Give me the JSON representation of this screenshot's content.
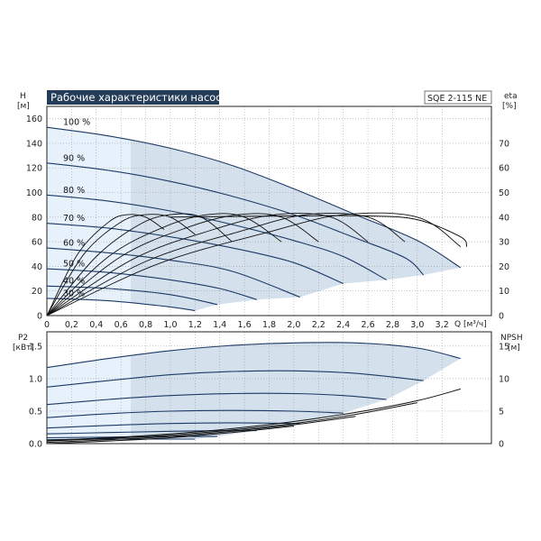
{
  "chart_data": [
    {
      "type": "line",
      "title": "Рабочие характеристики насоса",
      "model": "SQE 2-115 NE",
      "x_axis": {
        "label": "Q [м³/ч]",
        "range": [
          0,
          3.6
        ],
        "ticks": [
          "0",
          "0,2",
          "0,4",
          "0,6",
          "0,8",
          "1,0",
          "1,2",
          "1,4",
          "1,6",
          "1,8",
          "2,0",
          "2,2",
          "2,4",
          "2,6",
          "2,8",
          "3,0",
          "3,2"
        ]
      },
      "y_axis": {
        "label_top": "H",
        "label_unit": "[м]",
        "range": [
          0,
          170
        ],
        "ticks": [
          "0",
          "20",
          "40",
          "60",
          "80",
          "100",
          "120",
          "140",
          "160"
        ]
      },
      "y2_axis": {
        "label_top": "eta",
        "label_unit": "[%]",
        "range": [
          0,
          85
        ],
        "ticks": [
          "0",
          "10",
          "20",
          "30",
          "40",
          "50",
          "60",
          "70"
        ]
      },
      "colors": {
        "curve": "#1c3a66",
        "region": "#d4e0ec",
        "region_light": "#e6f1fb",
        "eta": "#111111",
        "title_bg": "#253d58"
      },
      "head_curves": [
        {
          "label": "100 %",
          "points": [
            [
              0,
              153
            ],
            [
              0.5,
              146
            ],
            [
              1.0,
              136
            ],
            [
              1.5,
              122
            ],
            [
              2.0,
              103
            ],
            [
              2.5,
              82
            ],
            [
              3.0,
              61
            ],
            [
              3.35,
              39
            ]
          ]
        },
        {
          "label": "90 %",
          "points": [
            [
              0,
              124
            ],
            [
              0.5,
              118
            ],
            [
              1.0,
              109
            ],
            [
              1.5,
              97
            ],
            [
              2.0,
              82
            ],
            [
              2.5,
              63
            ],
            [
              2.9,
              47
            ],
            [
              3.05,
              33
            ]
          ]
        },
        {
          "label": "80 %",
          "points": [
            [
              0,
              98
            ],
            [
              0.5,
              93
            ],
            [
              1.0,
              85
            ],
            [
              1.5,
              74
            ],
            [
              2.0,
              61
            ],
            [
              2.4,
              48
            ],
            [
              2.75,
              29
            ]
          ]
        },
        {
          "label": "70 %",
          "points": [
            [
              0,
              75
            ],
            [
              0.5,
              71
            ],
            [
              1.0,
              64
            ],
            [
              1.5,
              55
            ],
            [
              2.0,
              43
            ],
            [
              2.4,
              26
            ]
          ]
        },
        {
          "label": "60 %",
          "points": [
            [
              0,
              55
            ],
            [
              0.5,
              51
            ],
            [
              1.0,
              45
            ],
            [
              1.5,
              36
            ],
            [
              2.05,
              15
            ]
          ]
        },
        {
          "label": "50 %",
          "points": [
            [
              0,
              38
            ],
            [
              0.5,
              35
            ],
            [
              1.0,
              29
            ],
            [
              1.4,
              22
            ],
            [
              1.7,
              13
            ]
          ]
        },
        {
          "label": "40 %",
          "points": [
            [
              0,
              24
            ],
            [
              0.5,
              22
            ],
            [
              1.0,
              17
            ],
            [
              1.38,
              9
            ]
          ]
        },
        {
          "label": "30 %",
          "points": [
            [
              0,
              14
            ],
            [
              0.5,
              12
            ],
            [
              1.0,
              7
            ],
            [
              1.2,
              4
            ]
          ]
        }
      ],
      "eta_curves": [
        {
          "points": [
            [
              0.0,
              0
            ],
            [
              0.25,
              25
            ],
            [
              0.5,
              38
            ],
            [
              0.65,
              41
            ],
            [
              0.8,
              40
            ],
            [
              0.95,
              35
            ]
          ]
        },
        {
          "points": [
            [
              0.0,
              0
            ],
            [
              0.3,
              25
            ],
            [
              0.6,
              38
            ],
            [
              0.8,
              41
            ],
            [
              1.0,
              40
            ],
            [
              1.2,
              33
            ]
          ]
        },
        {
          "points": [
            [
              0.0,
              0
            ],
            [
              0.4,
              24
            ],
            [
              0.75,
              37
            ],
            [
              1.0,
              41
            ],
            [
              1.25,
              40
            ],
            [
              1.5,
              30
            ]
          ]
        },
        {
          "points": [
            [
              0.0,
              0
            ],
            [
              0.5,
              24
            ],
            [
              0.95,
              36
            ],
            [
              1.3,
              41
            ],
            [
              1.6,
              40
            ],
            [
              1.9,
              30
            ]
          ]
        },
        {
          "points": [
            [
              0.0,
              0
            ],
            [
              0.6,
              24
            ],
            [
              1.15,
              36
            ],
            [
              1.55,
              41
            ],
            [
              1.9,
              40
            ],
            [
              2.2,
              30
            ]
          ]
        },
        {
          "points": [
            [
              0.0,
              0
            ],
            [
              0.7,
              23
            ],
            [
              1.35,
              35
            ],
            [
              1.85,
              41
            ],
            [
              2.3,
              40
            ],
            [
              2.6,
              30
            ]
          ]
        },
        {
          "points": [
            [
              0.0,
              0
            ],
            [
              0.8,
              22
            ],
            [
              1.55,
              34
            ],
            [
              2.1,
              41
            ],
            [
              2.6,
              40
            ],
            [
              2.9,
              30
            ]
          ]
        },
        {
          "points": [
            [
              0.0,
              0
            ],
            [
              0.9,
              21
            ],
            [
              1.8,
              34
            ],
            [
              2.4,
              41
            ],
            [
              3.0,
              40
            ],
            [
              3.35,
              28
            ]
          ]
        }
      ]
    },
    {
      "type": "line",
      "x_axis": {
        "range": [
          0,
          3.6
        ]
      },
      "y_axis": {
        "label_top": "P2",
        "label_unit": "[кВт]",
        "range": [
          0,
          1.72
        ],
        "ticks": [
          "0.0",
          "0.5",
          "1.0",
          "1.5"
        ]
      },
      "y2_axis": {
        "label_top": "NPSH",
        "label_unit": "[м]",
        "range": [
          0,
          17.2
        ],
        "ticks": [
          "0",
          "5",
          "10",
          "15"
        ]
      },
      "power_curves": [
        {
          "label": "100 %",
          "points": [
            [
              0,
              1.17
            ],
            [
              0.5,
              1.31
            ],
            [
              1.0,
              1.43
            ],
            [
              1.5,
              1.51
            ],
            [
              2.0,
              1.55
            ],
            [
              2.5,
              1.55
            ],
            [
              3.0,
              1.47
            ],
            [
              3.35,
              1.31
            ]
          ]
        },
        {
          "label": "90 %",
          "points": [
            [
              0,
              0.87
            ],
            [
              0.5,
              0.97
            ],
            [
              1.0,
              1.06
            ],
            [
              1.5,
              1.11
            ],
            [
              2.0,
              1.12
            ],
            [
              2.5,
              1.08
            ],
            [
              3.05,
              0.97
            ]
          ]
        },
        {
          "label": "80 %",
          "points": [
            [
              0,
              0.6
            ],
            [
              0.5,
              0.68
            ],
            [
              1.0,
              0.74
            ],
            [
              1.5,
              0.77
            ],
            [
              2.0,
              0.77
            ],
            [
              2.4,
              0.74
            ],
            [
              2.75,
              0.68
            ]
          ]
        },
        {
          "label": "70 %",
          "points": [
            [
              0,
              0.4
            ],
            [
              0.5,
              0.46
            ],
            [
              1.0,
              0.5
            ],
            [
              1.5,
              0.51
            ],
            [
              2.0,
              0.5
            ],
            [
              2.4,
              0.47
            ]
          ]
        },
        {
          "label": "60 %",
          "points": [
            [
              0,
              0.24
            ],
            [
              0.5,
              0.28
            ],
            [
              1.0,
              0.31
            ],
            [
              1.5,
              0.32
            ],
            [
              2.05,
              0.31
            ]
          ]
        },
        {
          "label": "50 %",
          "points": [
            [
              0,
              0.15
            ],
            [
              0.5,
              0.17
            ],
            [
              1.0,
              0.19
            ],
            [
              1.4,
              0.2
            ],
            [
              1.7,
              0.2
            ]
          ]
        },
        {
          "label": "40 %",
          "points": [
            [
              0,
              0.09
            ],
            [
              0.5,
              0.1
            ],
            [
              1.0,
              0.11
            ],
            [
              1.38,
              0.11
            ]
          ]
        },
        {
          "label": "30 %",
          "points": [
            [
              0,
              0.06
            ],
            [
              0.5,
              0.07
            ],
            [
              1.0,
              0.07
            ],
            [
              1.2,
              0.07
            ]
          ]
        }
      ],
      "npsh_curves": [
        {
          "points": [
            [
              0.0,
              0.5
            ],
            [
              0.5,
              0.9
            ],
            [
              1.0,
              1.5
            ],
            [
              1.5,
              2.3
            ],
            [
              2.0,
              3.4
            ],
            [
              2.5,
              4.8
            ],
            [
              3.0,
              6.6
            ],
            [
              3.35,
              8.4
            ]
          ]
        },
        {
          "points": [
            [
              0.0,
              0.4
            ],
            [
              0.5,
              0.8
            ],
            [
              1.0,
              1.3
            ],
            [
              1.5,
              2.1
            ],
            [
              2.0,
              3.1
            ],
            [
              2.5,
              4.5
            ],
            [
              3.0,
              6.3
            ]
          ]
        },
        {
          "points": [
            [
              0.0,
              0.2
            ],
            [
              0.5,
              0.6
            ],
            [
              1.0,
              1.1
            ],
            [
              1.5,
              1.9
            ],
            [
              2.0,
              2.9
            ],
            [
              2.5,
              4.2
            ]
          ]
        },
        {
          "points": [
            [
              0.0,
              0.0
            ],
            [
              0.5,
              0.4
            ],
            [
              1.0,
              0.9
            ],
            [
              1.5,
              1.7
            ],
            [
              2.0,
              2.7
            ]
          ]
        }
      ]
    }
  ]
}
